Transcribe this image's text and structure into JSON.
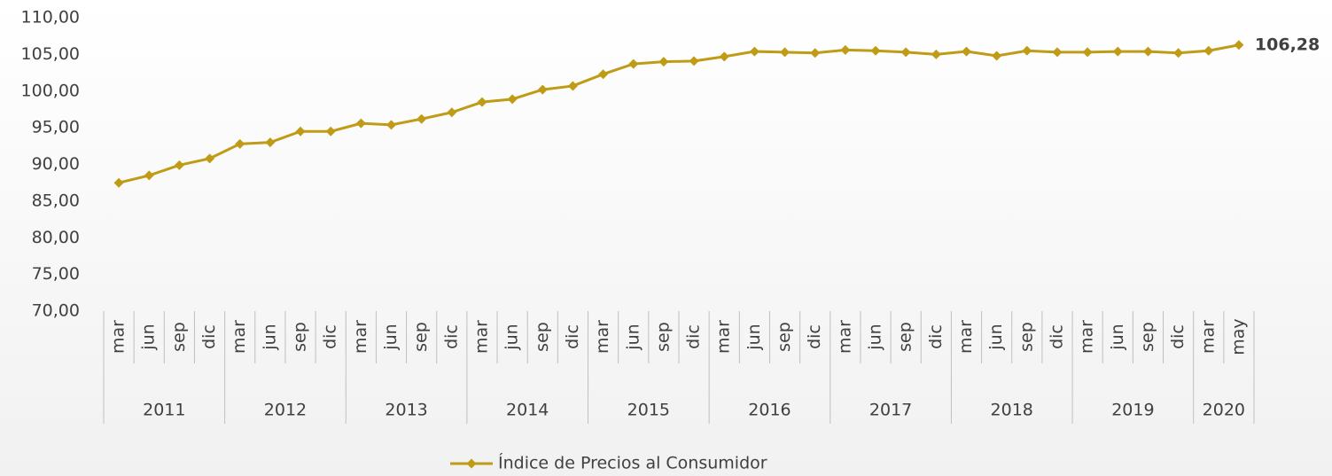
{
  "chart_data": {
    "type": "line",
    "categories": [
      "mar",
      "jun",
      "sep",
      "dic",
      "mar",
      "jun",
      "sep",
      "dic",
      "mar",
      "jun",
      "sep",
      "dic",
      "mar",
      "jun",
      "sep",
      "dic",
      "mar",
      "jun",
      "sep",
      "dic",
      "mar",
      "jun",
      "sep",
      "dic",
      "mar",
      "jun",
      "sep",
      "dic",
      "mar",
      "jun",
      "sep",
      "dic",
      "mar",
      "jun",
      "sep",
      "dic",
      "mar",
      "may"
    ],
    "category_groups": [
      {
        "label": "2011",
        "span": 4
      },
      {
        "label": "2012",
        "span": 4
      },
      {
        "label": "2013",
        "span": 4
      },
      {
        "label": "2014",
        "span": 4
      },
      {
        "label": "2015",
        "span": 4
      },
      {
        "label": "2016",
        "span": 4
      },
      {
        "label": "2017",
        "span": 4
      },
      {
        "label": "2018",
        "span": 4
      },
      {
        "label": "2019",
        "span": 4
      },
      {
        "label": "2020",
        "span": 2
      }
    ],
    "series": [
      {
        "name": "Índice de Precios al Consumidor",
        "color": "#bf9b16",
        "values": [
          87.5,
          88.5,
          89.9,
          90.8,
          92.8,
          93.0,
          94.5,
          94.5,
          95.6,
          95.4,
          96.2,
          97.1,
          98.5,
          98.9,
          100.2,
          100.7,
          102.3,
          103.7,
          104.0,
          104.1,
          104.7,
          105.4,
          105.3,
          105.2,
          105.6,
          105.5,
          105.3,
          105.0,
          105.4,
          104.8,
          105.5,
          105.3,
          105.3,
          105.4,
          105.4,
          105.2,
          105.5,
          106.28
        ],
        "value_labels": [
          null,
          null,
          null,
          null,
          null,
          null,
          null,
          null,
          null,
          null,
          null,
          null,
          null,
          null,
          null,
          null,
          null,
          null,
          null,
          null,
          null,
          null,
          null,
          null,
          null,
          null,
          null,
          null,
          null,
          null,
          null,
          null,
          null,
          null,
          null,
          null,
          null,
          "106,28"
        ]
      }
    ],
    "ylim": [
      70,
      110
    ],
    "yticks": [
      {
        "value": 70,
        "label": "70,00"
      },
      {
        "value": 75,
        "label": "75,00"
      },
      {
        "value": 80,
        "label": "80,00"
      },
      {
        "value": 85,
        "label": "85,00"
      },
      {
        "value": 90,
        "label": "90,00"
      },
      {
        "value": 95,
        "label": "95,00"
      },
      {
        "value": 100,
        "label": "100,00"
      },
      {
        "value": 105,
        "label": "105,00"
      },
      {
        "value": 110,
        "label": "110,00"
      }
    ],
    "grid": false,
    "legend": "bottom"
  }
}
